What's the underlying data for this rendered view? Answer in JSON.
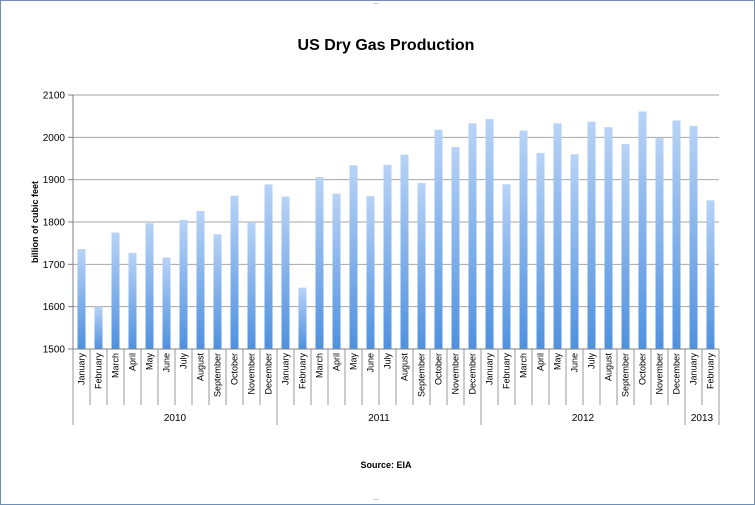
{
  "chart_data": {
    "type": "bar",
    "title": "US Dry Gas Production",
    "xlabel": "",
    "ylabel": "billion of cubic feet",
    "source": "Source: EIA",
    "ylim": [
      1500,
      2100
    ],
    "yticks": [
      1500,
      1600,
      1700,
      1800,
      1900,
      2000,
      2100
    ],
    "grid": true,
    "legend": "none",
    "categories": [
      "January",
      "February",
      "March",
      "April",
      "May",
      "June",
      "July",
      "August",
      "September",
      "October",
      "November",
      "December",
      "January",
      "February",
      "March",
      "April",
      "May",
      "June",
      "July",
      "August",
      "September",
      "October",
      "November",
      "December",
      "January",
      "February",
      "March",
      "April",
      "May",
      "June",
      "July",
      "August",
      "September",
      "October",
      "November",
      "December",
      "January",
      "February"
    ],
    "years": [
      {
        "label": "2010",
        "count": 12
      },
      {
        "label": "2011",
        "count": 12
      },
      {
        "label": "2012",
        "count": 12
      },
      {
        "label": "2013",
        "count": 2
      }
    ],
    "values": [
      1736,
      1600,
      1775,
      1727,
      1797,
      1716,
      1805,
      1826,
      1771,
      1862,
      1800,
      1889,
      1860,
      1645,
      1906,
      1867,
      1934,
      1861,
      1935,
      1959,
      1892,
      2018,
      1977,
      2033,
      2043,
      1889,
      2016,
      1963,
      2033,
      1960,
      2037,
      2024,
      1984,
      2061,
      1998,
      2040,
      2027,
      1851
    ],
    "bar_color_top": "#b8d3f6",
    "bar_color_bottom": "#4f91df"
  }
}
